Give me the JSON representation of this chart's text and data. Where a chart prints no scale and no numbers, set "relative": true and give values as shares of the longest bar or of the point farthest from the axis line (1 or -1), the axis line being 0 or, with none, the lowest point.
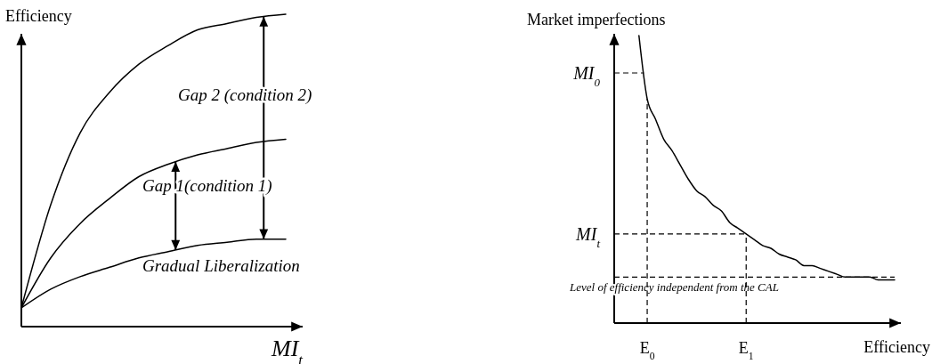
{
  "chart_data": [
    {
      "type": "line",
      "relative": true,
      "ylabel": "Efficiency",
      "xlabel": "MI$_{t}$",
      "categories": [
        null,
        null,
        null,
        null,
        null,
        null,
        null,
        null,
        null,
        null
      ],
      "tick_labels": false,
      "marker": "none",
      "line_style": "solid",
      "series": [
        {
          "color": "#000000",
          "values": [
            0.06,
            0.39,
            0.62,
            0.75,
            0.84,
            0.9,
            0.95,
            0.97,
            0.99,
            1
          ]
        },
        {
          "color": "#000000",
          "values": [
            0.06,
            0.22,
            0.33,
            0.41,
            0.48,
            0.52,
            0.55,
            0.57,
            0.59,
            0.6
          ]
        },
        {
          "color": "#000000",
          "values": [
            0.06,
            0.12,
            0.16,
            0.19,
            0.22,
            0.24,
            0.26,
            0.27,
            0.28,
            0.28
          ]
        }
      ],
      "annotations": [
        "Gap 2 (condition 2)",
        "Gap 1(condition 1)",
        "Gradual Liberalization"
      ]
    },
    {
      "type": "line",
      "relative": true,
      "ylabel": "Market imperfections",
      "xlabel": "Efficiency",
      "categories": [
        null,
        null,
        null,
        null,
        "E$_{0}$",
        null,
        null,
        null,
        null,
        null,
        null,
        null,
        null,
        null,
        null,
        null,
        "E$_{1}$",
        null,
        null,
        null,
        null,
        null,
        null,
        null,
        null,
        null,
        null,
        null,
        null,
        null,
        null,
        null,
        null,
        null,
        null
      ],
      "tick_labels": "x",
      "marker": "none",
      "line_style": "solid",
      "series": [
        {
          "color": "#000000",
          "values": [
            null,
            null,
            null,
            1,
            0.78,
            0.71,
            0.64,
            0.6,
            0.55,
            0.5,
            0.46,
            0.44,
            0.41,
            0.39,
            0.35,
            0.33,
            0.31,
            0.29,
            0.27,
            0.26,
            0.24,
            0.23,
            0.22,
            0.2,
            0.2,
            0.19,
            0.18,
            0.17,
            0.16,
            0.16,
            0.16,
            0.16,
            0.15,
            0.15,
            0.15
          ]
        }
      ],
      "ref_lines": [
        {
          "axis": "y",
          "value": 0.87,
          "label": "MI$_{0}$",
          "line_style": "dashed"
        },
        {
          "axis": "y",
          "value": 0.31,
          "label": "MI$_{t}$",
          "line_style": "dashed"
        },
        {
          "axis": "y",
          "value": 0.16,
          "label": "Level of efficiency independent from the CAL",
          "line_style": "dashed"
        },
        {
          "axis": "x",
          "value": "E$_{0}$",
          "line_style": "dashed"
        },
        {
          "axis": "x",
          "value": "E$_{1}$",
          "line_style": "dashed"
        }
      ]
    }
  ]
}
